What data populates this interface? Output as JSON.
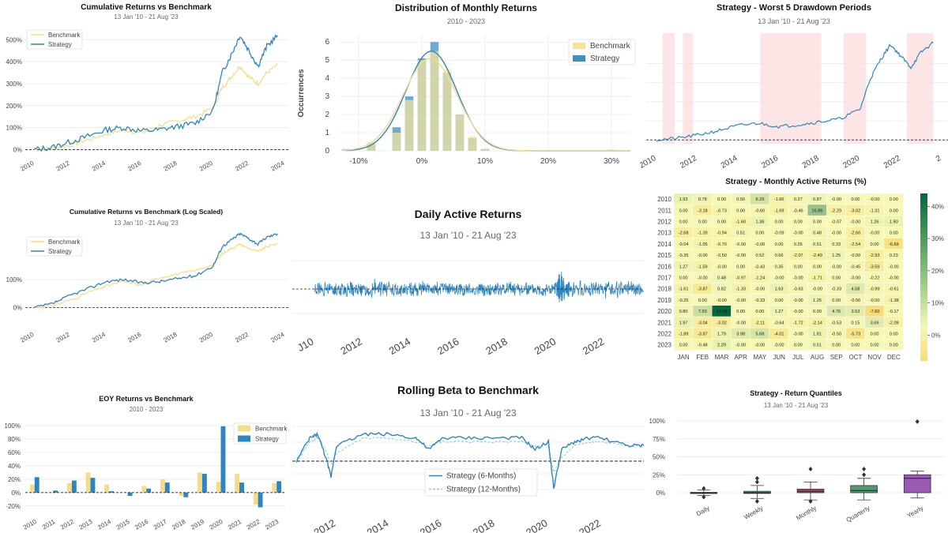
{
  "colors": {
    "benchmark": "#f5dc8a",
    "strategy": "#2e86c1",
    "hist_bench": "#f7e29c",
    "hist_strat": "#3d8fc4",
    "drawdown_shade": "#fcdede",
    "grid": "#e6e6e6",
    "zero_line": "#222222",
    "heat_high": "#00683a",
    "heat_mid": "#f6f8b4",
    "heat_low": "#f8dc74",
    "box_daily": "#2c6e7a",
    "box_weekly": "#3b8fa0",
    "box_monthly": "#a4506e",
    "box_quarterly": "#4f9a71",
    "box_yearly": "#9b59b6"
  },
  "panels": {
    "cumret": {
      "title": "Cumulative Returns vs Benchmark",
      "subtitle": "13 Jan '10 - 21 Aug '23",
      "legend": [
        "Benchmark",
        "Strategy"
      ],
      "y_ticks": [
        "0%",
        "100%",
        "200%",
        "300%",
        "400%",
        "500%"
      ],
      "x_ticks": [
        "2010",
        "2012",
        "2014",
        "2016",
        "2018",
        "2020",
        "2022",
        "2024"
      ]
    },
    "dist": {
      "title": "Distribution of Monthly Returns",
      "subtitle": "2010 - 2023",
      "ylabel": "Occurrences",
      "legend": [
        "Benchmark",
        "Strategy"
      ],
      "y_ticks": [
        "0",
        "1",
        "2",
        "3",
        "4",
        "5",
        "6"
      ],
      "x_ticks": [
        "-10%",
        "0%",
        "10%",
        "20%",
        "30%"
      ]
    },
    "drawdown": {
      "title": "Strategy - Worst 5 Drawdown Periods",
      "subtitle": "13 Jan '10 - 21 Aug '23",
      "x_ticks": [
        "2010",
        "2012",
        "2014",
        "2016",
        "2018",
        "2020",
        "2022",
        "2"
      ]
    },
    "logret": {
      "title": "Cumulative Returns vs Benchmark (Log Scaled)",
      "subtitle": "13 Jan '10 - 21 Aug '23",
      "legend": [
        "Benchmark",
        "Strategy"
      ],
      "y_ticks": [
        "0%",
        "100%"
      ],
      "x_ticks": [
        "2010",
        "2012",
        "2014",
        "2016",
        "2018",
        "2020",
        "2022",
        "2024"
      ]
    },
    "daily": {
      "title": "Daily Active Returns",
      "subtitle": "13 Jan '10 - 21 Aug '23",
      "x_ticks": [
        "J10",
        "2012",
        "2014",
        "2016",
        "2018",
        "2020",
        "2022"
      ]
    },
    "heatmap": {
      "title": "Strategy - Monthly Active Returns (%)",
      "colorbar_ticks": [
        "40%",
        "30%",
        "20%",
        "10%",
        "0%"
      ]
    },
    "eoy": {
      "title": "EOY Returns  vs Benchmark",
      "subtitle": "2010 - 2023",
      "legend": [
        "Benchmark",
        "Strategy"
      ],
      "y_ticks": [
        "100%",
        "80%",
        "60%",
        "40%",
        "20%",
        "0%",
        "-20%"
      ]
    },
    "beta": {
      "title": "Rolling Beta to Benchmark",
      "subtitle": "13 Jan '10 - 21 Aug '23",
      "legend": [
        "Strategy (6-Months)",
        "Strategy (12-Months)"
      ],
      "x_ticks": [
        "2012",
        "2014",
        "2016",
        "2018",
        "2020",
        "2022"
      ]
    },
    "quantiles": {
      "title": "Strategy - Return Quantiles",
      "subtitle": "13 Jan '10 - 21 Aug '23",
      "y_ticks": [
        "100%",
        "75%",
        "50%",
        "25%",
        "0%"
      ]
    }
  },
  "chart_data": [
    {
      "id": "cumret",
      "type": "line",
      "title": "Cumulative Returns vs Benchmark",
      "x": [
        2010,
        2011,
        2012,
        2013,
        2014,
        2015,
        2016,
        2017,
        2018,
        2019,
        2020,
        2020.5,
        2021,
        2021.5,
        2022,
        2022.5,
        2023,
        2023.6
      ],
      "series": [
        {
          "name": "Benchmark",
          "values": [
            0,
            5,
            20,
            45,
            70,
            90,
            75,
            110,
            130,
            150,
            190,
            280,
            330,
            380,
            330,
            300,
            350,
            385
          ]
        },
        {
          "name": "Strategy",
          "values": [
            0,
            10,
            35,
            60,
            90,
            100,
            85,
            90,
            105,
            120,
            180,
            350,
            430,
            520,
            450,
            380,
            470,
            520
          ]
        }
      ],
      "ylim": [
        -20,
        580
      ],
      "xlim": [
        2009.5,
        2024.2
      ]
    },
    {
      "id": "dist",
      "type": "bar",
      "title": "Distribution of Monthly Returns",
      "ylabel": "Occurrences",
      "categories": [
        -12,
        -8,
        -4,
        -2,
        0,
        2,
        4,
        6,
        8,
        10,
        30
      ],
      "series": [
        {
          "name": "Benchmark",
          "values": [
            0.1,
            0.5,
            1.0,
            2.8,
            5.0,
            5.5,
            4.5,
            2.0,
            0.8,
            0.1,
            0.05
          ]
        },
        {
          "name": "Strategy",
          "values": [
            0.1,
            0.4,
            1.3,
            3.0,
            5.1,
            6.0,
            4.3,
            2.0,
            0.7,
            0.1,
            0.05
          ]
        }
      ],
      "ylim": [
        0,
        6.4
      ],
      "xlim": [
        -13,
        33
      ]
    },
    {
      "id": "drawdown",
      "type": "line",
      "title": "Strategy - Worst 5 Drawdown Periods",
      "x": [
        2010,
        2011,
        2012,
        2013,
        2014,
        2015,
        2016,
        2017,
        2018,
        2019,
        2020,
        2020.5,
        2021,
        2021.5,
        2022,
        2022.5,
        2023,
        2023.6
      ],
      "values": [
        0,
        8,
        25,
        48,
        75,
        88,
        70,
        80,
        95,
        110,
        160,
        320,
        420,
        500,
        440,
        380,
        460,
        510
      ],
      "shaded_periods": [
        [
          2010.3,
          2010.9
        ],
        [
          2011.3,
          2011.8
        ],
        [
          2015.1,
          2016.1
        ],
        [
          2016.1,
          2018.1
        ],
        [
          2019.2,
          2020.3
        ],
        [
          2022.3,
          2023.6
        ]
      ],
      "ylim": [
        -20,
        560
      ],
      "xlim": [
        2009.5,
        2024.4
      ]
    },
    {
      "id": "logret",
      "type": "line",
      "title": "Cumulative Returns vs Benchmark (Log Scaled)",
      "x": [
        2010,
        2011,
        2012,
        2013,
        2014,
        2015,
        2016,
        2017,
        2018,
        2019,
        2020,
        2020.5,
        2021,
        2021.5,
        2022,
        2022.5,
        2023,
        2023.6
      ],
      "series": [
        {
          "name": "Benchmark",
          "values": [
            0,
            5,
            20,
            45,
            70,
            90,
            75,
            110,
            130,
            150,
            190,
            280,
            330,
            380,
            330,
            300,
            350,
            385
          ]
        },
        {
          "name": "Strategy",
          "values": [
            0,
            10,
            35,
            60,
            90,
            100,
            85,
            90,
            105,
            120,
            180,
            350,
            430,
            520,
            450,
            380,
            470,
            520
          ]
        }
      ],
      "log_scale": true
    },
    {
      "id": "daily",
      "type": "line",
      "title": "Daily Active Returns",
      "x": [
        2010,
        2010.5,
        2011,
        2011.5,
        2012,
        2012.5,
        2013,
        2013.5,
        2014,
        2014.5,
        2015,
        2015.5,
        2016,
        2016.5,
        2017,
        2017.5,
        2018,
        2018.5,
        2019,
        2019.5,
        2020,
        2020.1,
        2020.2,
        2020.3,
        2020.5,
        2021,
        2021.5,
        2022,
        2022.5,
        2023,
        2023.6
      ],
      "values": [
        0,
        1,
        -1,
        2,
        -2,
        5,
        -3,
        1,
        -1,
        2,
        -2,
        1,
        -1,
        1,
        -1,
        1,
        -2,
        1,
        -1,
        1,
        -1,
        12,
        -10,
        6,
        -4,
        2,
        -2,
        3,
        -3,
        2,
        -1
      ],
      "ylim": [
        -15,
        15
      ],
      "xlim": [
        2009.9,
        2023.6
      ]
    },
    {
      "id": "heatmap",
      "type": "heatmap",
      "title": "Strategy - Monthly Active Returns (%)",
      "columns": [
        "JAN",
        "FEB",
        "MAR",
        "APR",
        "MAY",
        "JUN",
        "JUL",
        "AUG",
        "SEP",
        "OCT",
        "NOV",
        "DEC"
      ],
      "rows": [
        "2010",
        "2011",
        "2012",
        "2013",
        "2014",
        "2015",
        "2016",
        "2017",
        "2018",
        "2019",
        "2020",
        "2021",
        "2022",
        "2023"
      ],
      "values": [
        [
          "1.93",
          "0.78",
          "0.00",
          "0.56",
          "6.29",
          "-1.66",
          "0.27",
          "0.87",
          "-0.00",
          "0.00",
          "-0.00",
          "0.00"
        ],
        [
          "0.00",
          "-3.18",
          "-0.73",
          "0.00",
          "-0.60",
          "-1.69",
          "-0.46",
          "16.86",
          "-2.29",
          "-3.02",
          "-1.31",
          "0.00"
        ],
        [
          "0.00",
          "0.00",
          "0.00",
          "-1.60",
          "1.38",
          "0.00",
          "0.00",
          "0.00",
          "-0.07",
          "-0.00",
          "1.26",
          "1.90"
        ],
        [
          "-2.68",
          "-1.39",
          "-0.94",
          "0.51",
          "0.00",
          "-0.09",
          "-0.00",
          "0.48",
          "-0.00",
          "-2.66",
          "-0.00",
          "0.00"
        ],
        [
          "-0.04",
          "-1.05",
          "-0.70",
          "-0.00",
          "-0.00",
          "0.00",
          "0.26",
          "0.51",
          "0.33",
          "-2.54",
          "0.00",
          "-6.69"
        ],
        [
          "-0.35",
          "-0.00",
          "-0.50",
          "-0.00",
          "0.52",
          "0.66",
          "-2.07",
          "-2.49",
          "1.25",
          "-0.00",
          "-2.93",
          "0.23"
        ],
        [
          "1.27",
          "-1.59",
          "-0.00",
          "0.00",
          "-0.43",
          "0.35",
          "0.00",
          "0.00",
          "-0.00",
          "-0.45",
          "-3.59",
          "-0.00"
        ],
        [
          "0.00",
          "-0.00",
          "0.48",
          "-0.97",
          "-1.24",
          "-0.00",
          "-0.00",
          "-1.71",
          "0.00",
          "-0.00",
          "-0.22",
          "-0.00"
        ],
        [
          "-1.61",
          "-3.87",
          "0.82",
          "-1.33",
          "-0.00",
          "1.63",
          "-0.63",
          "-0.00",
          "-0.33",
          "4.58",
          "-0.99",
          "-0.61"
        ],
        [
          "-0.25",
          "0.00",
          "-0.00",
          "-0.00",
          "-0.33",
          "0.00",
          "-0.00",
          "1.25",
          "0.00",
          "-0.56",
          "-0.00",
          "-1.38"
        ],
        [
          "0.80",
          "7.93",
          "44.28",
          "0.00",
          "0.00",
          "1.27",
          "-0.00",
          "0.00",
          "4.76",
          "3.53",
          "-7.60",
          "-0.17"
        ],
        [
          "1.97",
          "-3.04",
          "-3.02",
          "-0.00",
          "-2.11",
          "-0.64",
          "-1.72",
          "-2.14",
          "-0.53",
          "0.15",
          "3.69",
          "-2.09"
        ],
        [
          "-1.89",
          "-3.87",
          "1.79",
          "3.98",
          "5.68",
          "-4.01",
          "-0.00",
          "1.81",
          "-0.50",
          "-5.73",
          "0.00",
          "0.00"
        ],
        [
          "0.00",
          "-0.48",
          "2.29",
          "-0.00",
          "-0.00",
          "-0.00",
          "0.00",
          "0.51",
          "0.00",
          "0.00",
          "0.00",
          "0.00"
        ]
      ],
      "color_range": [
        -8,
        44
      ]
    },
    {
      "id": "eoy",
      "type": "bar",
      "title": "EOY Returns  vs Benchmark",
      "categories": [
        "2010",
        "2011",
        "2012",
        "2013",
        "2014",
        "2015",
        "2016",
        "2017",
        "2018",
        "2019",
        "2020",
        "2021",
        "2022",
        "2023"
      ],
      "series": [
        {
          "name": "Benchmark",
          "values": [
            12,
            0,
            14,
            30,
            12,
            0,
            10,
            20,
            -5,
            30,
            16,
            28,
            -18,
            14
          ]
        },
        {
          "name": "Strategy",
          "values": [
            23,
            3,
            18,
            22,
            2,
            -5,
            6,
            15,
            -7,
            28,
            99,
            15,
            -22,
            17
          ]
        }
      ],
      "ylim": [
        -25,
        100
      ]
    },
    {
      "id": "beta",
      "type": "line",
      "title": "Rolling Beta to Benchmark",
      "x": [
        2010.5,
        2011,
        2011.3,
        2011.6,
        2011.8,
        2012,
        2013,
        2014,
        2015,
        2015.5,
        2016,
        2017,
        2018,
        2019,
        2019.5,
        2020,
        2020.2,
        2020.5,
        2021,
        2021.5,
        2022,
        2023,
        2023.6
      ],
      "series": [
        {
          "name": "Strategy (6-Months)",
          "values": [
            0.9,
            1.5,
            1.6,
            1.0,
            0.5,
            1.3,
            1.6,
            1.6,
            1.5,
            1.2,
            1.5,
            1.5,
            1.5,
            1.5,
            1.2,
            1.4,
            0.2,
            1.2,
            1.4,
            1.5,
            1.5,
            1.3,
            1.3
          ]
        },
        {
          "name": "Strategy (12-Months)",
          "values": [
            0.9,
            1.4,
            1.5,
            1.2,
            0.8,
            1.1,
            1.5,
            1.5,
            1.4,
            1.3,
            1.4,
            1.4,
            1.4,
            1.4,
            1.3,
            1.3,
            0.6,
            1.0,
            1.3,
            1.4,
            1.4,
            1.3,
            1.3
          ]
        }
      ],
      "ylim": [
        0,
        1.8
      ],
      "xlim": [
        2010.4,
        2023.6
      ]
    },
    {
      "id": "quantiles",
      "type": "box",
      "title": "Strategy - Return Quantiles",
      "categories": [
        "Daily",
        "Weekly",
        "Monthly",
        "Quarterly",
        "Yearly"
      ],
      "boxes": [
        {
          "min": -4,
          "q1": -0.5,
          "median": 0,
          "q3": 0.5,
          "max": 4,
          "outliers": [
            -6,
            6
          ]
        },
        {
          "min": -8,
          "q1": -1,
          "median": 0,
          "q3": 2,
          "max": 10,
          "outliers": [
            -12,
            15,
            20
          ]
        },
        {
          "min": -10,
          "q1": 0,
          "median": 2,
          "q3": 5,
          "max": 15,
          "outliers": [
            -12,
            33
          ]
        },
        {
          "min": -10,
          "q1": 0,
          "median": 3,
          "q3": 10,
          "max": 20,
          "outliers": [
            25,
            33
          ]
        },
        {
          "min": -7,
          "q1": 0,
          "median": 20,
          "q3": 25,
          "max": 30,
          "outliers": [
            99
          ]
        }
      ],
      "ylim": [
        -10,
        100
      ]
    }
  ]
}
